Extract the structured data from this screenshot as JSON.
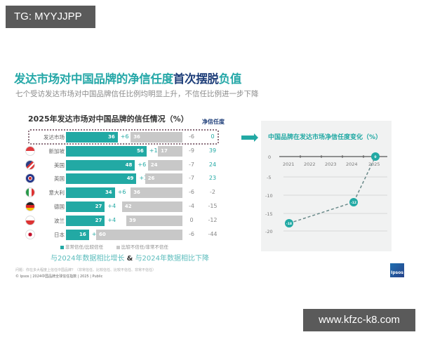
{
  "watermarks": {
    "top": "TG: MYYJJPP",
    "bottom": "www.kfzc-k8.com"
  },
  "header": {
    "title_teal": "发达市场对中国品牌的净信任度",
    "title_dark": "首次摆脱",
    "title_teal2": "负值",
    "subtitle": "七个受访发达市场对中国品牌信任比例均明显上升，不信任比例进一步下降"
  },
  "left_chart": {
    "title": "2025年发达市场对中国品牌的信任情况（%）",
    "net_header": "净信任度",
    "legend": {
      "trust": "非常信任/比较信任",
      "distrust": "比较不信任/非常不信任"
    },
    "caption_up": "与2024年数据相比增长",
    "caption_amp": "&",
    "caption_down": "与2024年数据相比下降",
    "footnote1": "问题：你在多大程度上信任中国品牌？（非常信任、比较信任、比较不信任、非常不信任）",
    "footnote2": "© Ipsos | 2024中国品牌全球信任指数 | 2025 | Public"
  },
  "chart_data": [
    {
      "type": "bar",
      "title": "2025年发达市场对中国品牌的信任情况（%）",
      "categories": [
        "发达市场",
        "新加坡",
        "美国",
        "英国",
        "意大利",
        "德国",
        "波兰",
        "日本"
      ],
      "series": [
        {
          "name": "非常信任/比较信任",
          "values": [
            36,
            56,
            48,
            49,
            34,
            27,
            27,
            16
          ],
          "change_vs_2024": [
            "+6",
            "+10",
            "+6",
            "+10",
            "+6",
            "+4",
            "+4",
            "+4"
          ]
        },
        {
          "name": "比较不信任/非常不信任",
          "values": [
            36,
            17,
            24,
            26,
            36,
            42,
            39,
            60
          ],
          "change_vs_2024": [
            "-6",
            "-9",
            "-7",
            "-7",
            "-6",
            "-4",
            "0",
            "-6"
          ]
        }
      ],
      "net_trust": [
        "0",
        "39",
        "24",
        "23",
        "-2",
        "-15",
        "-12",
        "-44"
      ],
      "flags": [
        "",
        "singapore-flag",
        "usa-flag",
        "uk-flag",
        "italy-flag",
        "germany-flag",
        "poland-flag",
        "japan-flag"
      ]
    },
    {
      "type": "line",
      "title": "中国品牌在发达市场净信任度变化（%）",
      "x": [
        "2021",
        "2022",
        "2023",
        "2024",
        "2025"
      ],
      "series": [
        {
          "name": "净信任度",
          "points": [
            {
              "x": "2021",
              "y": -18
            },
            {
              "x": "2024",
              "y": -12
            },
            {
              "x": "2025",
              "y": 0
            }
          ]
        }
      ],
      "y_ticks": [
        "0",
        "-5",
        "-10",
        "-15",
        "-20"
      ],
      "ylim": [
        -20,
        0
      ],
      "point_labels": [
        "-18",
        "-12",
        "0"
      ]
    }
  ],
  "rows": [
    {
      "name": "发达市场",
      "trust": "36",
      "trust_chg": "+6",
      "distrust": "36",
      "distrust_chg": "-6",
      "net": "0"
    },
    {
      "name": "新加坡",
      "trust": "56",
      "trust_chg": "+10",
      "distrust": "17",
      "distrust_chg": "-9",
      "net": "39"
    },
    {
      "name": "美国",
      "trust": "48",
      "trust_chg": "+6",
      "distrust": "24",
      "distrust_chg": "-7",
      "net": "24"
    },
    {
      "name": "英国",
      "trust": "49",
      "trust_chg": "+10",
      "distrust": "26",
      "distrust_chg": "-7",
      "net": "23"
    },
    {
      "name": "意大利",
      "trust": "34",
      "trust_chg": "+6",
      "distrust": "36",
      "distrust_chg": "-6",
      "net": "-2"
    },
    {
      "name": "德国",
      "trust": "27",
      "trust_chg": "+4",
      "distrust": "42",
      "distrust_chg": "-4",
      "net": "-15"
    },
    {
      "name": "波兰",
      "trust": "27",
      "trust_chg": "+4",
      "distrust": "39",
      "distrust_chg": "0",
      "net": "-12"
    },
    {
      "name": "日本",
      "trust": "16",
      "trust_chg": "+4",
      "distrust": "60",
      "distrust_chg": "-6",
      "net": "-44"
    }
  ],
  "right_chart": {
    "title": "中国品牌在发达市场净信任度变化（%）",
    "years": [
      "2021",
      "2022",
      "2023",
      "2024",
      "2025"
    ],
    "y_ticks": [
      "0",
      "-5",
      "-10",
      "-15",
      "-20"
    ],
    "labels": [
      "-18",
      "-12",
      "0"
    ]
  },
  "logo": "Ipsos",
  "colors": {
    "teal": "#22a9a4",
    "grey": "#c8c8c8",
    "navy": "#1f3f7a"
  }
}
